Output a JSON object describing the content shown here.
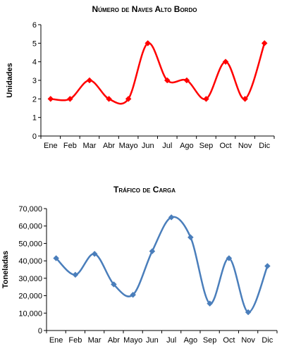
{
  "chart_data": [
    {
      "type": "line",
      "title": "Número de Naves Alto Bordo",
      "xlabel": "",
      "ylabel": "Unidades",
      "categories": [
        "Ene",
        "Feb",
        "Mar",
        "Abr",
        "Mayo",
        "Jun",
        "Jul",
        "Ago",
        "Sep",
        "Oct",
        "Nov",
        "Dic"
      ],
      "series": [
        {
          "values": [
            2,
            2,
            3,
            2,
            2,
            5,
            3,
            3,
            2,
            4,
            2,
            5
          ]
        }
      ],
      "ylim": [
        0,
        6
      ],
      "yticks": [
        "0",
        "1",
        "2",
        "3",
        "4",
        "5",
        "6"
      ],
      "color": "#ff0000",
      "grid": false,
      "smooth": true
    },
    {
      "type": "line",
      "title": "Tráfico de Carga",
      "xlabel": "",
      "ylabel": "Toneladas",
      "categories": [
        "Ene",
        "Feb",
        "Mar",
        "Abr",
        "Mayo",
        "Jun",
        "Jul",
        "Ago",
        "Sep",
        "Oct",
        "Nov",
        "Dic"
      ],
      "series": [
        {
          "values": [
            41500,
            32000,
            44000,
            26500,
            20500,
            45500,
            65000,
            53500,
            15500,
            41500,
            10500,
            37000
          ]
        }
      ],
      "ylim": [
        0,
        70000
      ],
      "yticks": [
        "0",
        "10,000",
        "20,000",
        "30,000",
        "40,000",
        "50,000",
        "60,000",
        "70,000"
      ],
      "color": "#4a7ebb",
      "grid": false,
      "smooth": true
    }
  ]
}
